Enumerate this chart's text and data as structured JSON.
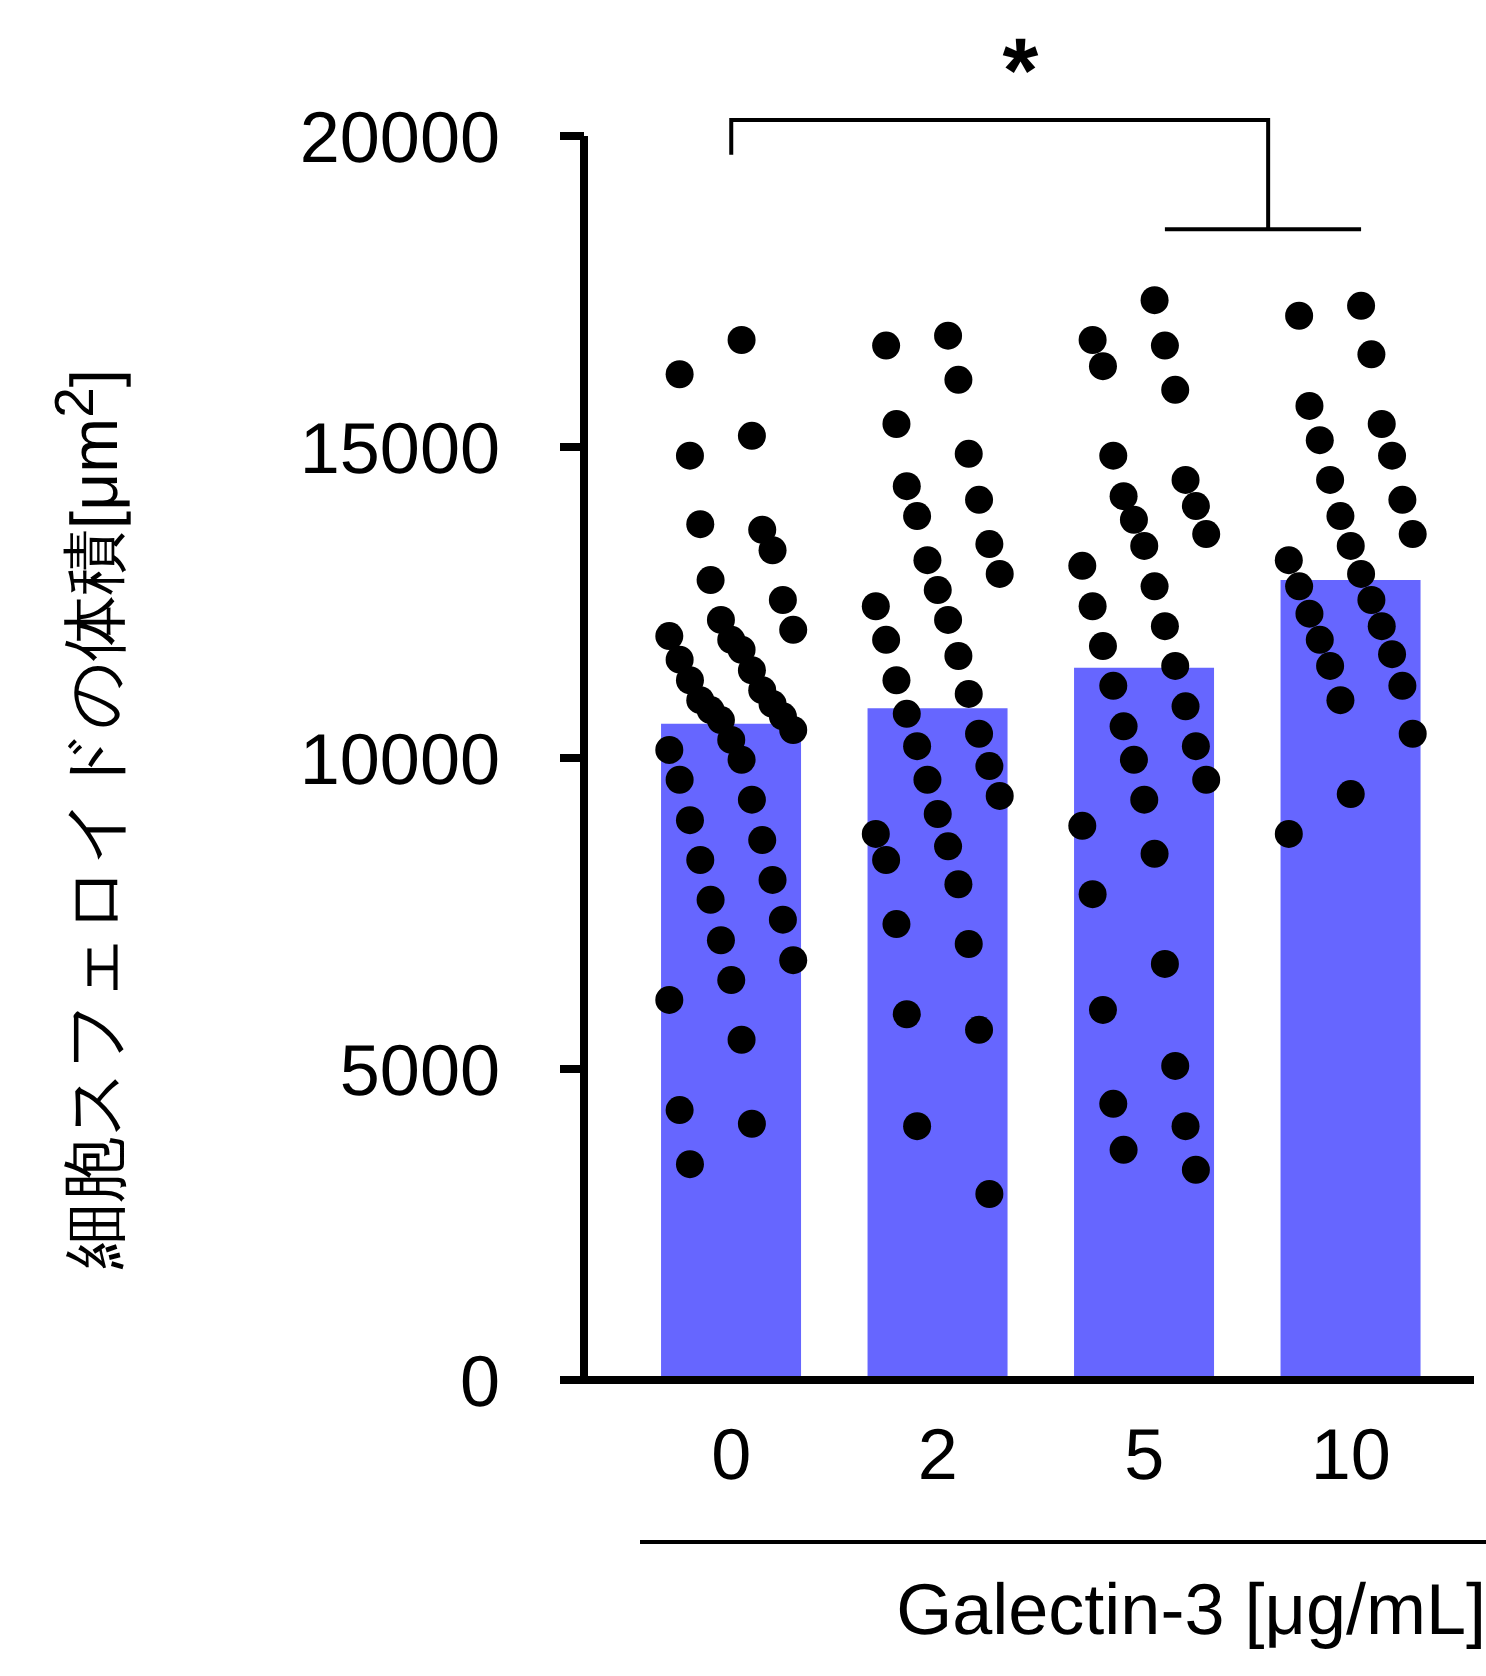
{
  "chart_data": {
    "type": "bar",
    "ylabel": "細胞スフェロイドの体積[μm$^{2}$]",
    "xlabel": "Galectin-3 [μg/mL]",
    "categories": [
      "0",
      "2",
      "5",
      "10"
    ],
    "ylim": [
      0,
      20000
    ],
    "yticks": [
      0,
      5000,
      10000,
      15000,
      20000
    ],
    "grid": false,
    "legend": false,
    "annotations": [
      "*"
    ],
    "series": [
      {
        "color": "#6666ff",
        "values": [
          10550,
          10800,
          11450,
          12860
        ]
      },
      {
        "type": "scatter",
        "color": "#000000",
        "marker": "circle",
        "x": [
          "0",
          "0",
          "0",
          "0",
          "0",
          "0",
          "0",
          "0",
          "0",
          "0",
          "0",
          "0",
          "0",
          "0",
          "0",
          "0",
          "0",
          "0",
          "0",
          "0",
          "0",
          "0",
          "0",
          "0",
          "0",
          "0",
          "0",
          "0",
          "0",
          "0",
          "0",
          "0",
          "0",
          "0",
          "0",
          "0",
          "0",
          "0",
          "0",
          "0",
          "0",
          "0",
          "0",
          "2",
          "2",
          "2",
          "2",
          "2",
          "2",
          "2",
          "2",
          "2",
          "2",
          "2",
          "2",
          "2",
          "2",
          "2",
          "2",
          "2",
          "2",
          "2",
          "2",
          "2",
          "2",
          "2",
          "2",
          "2",
          "2",
          "2",
          "2",
          "2",
          "2",
          "2",
          "2",
          "2",
          "2",
          "2",
          "5",
          "5",
          "5",
          "5",
          "5",
          "5",
          "5",
          "5",
          "5",
          "5",
          "5",
          "5",
          "5",
          "5",
          "5",
          "5",
          "5",
          "5",
          "5",
          "5",
          "5",
          "5",
          "5",
          "5",
          "5",
          "5",
          "5",
          "5",
          "5",
          "5",
          "5",
          "5",
          "5",
          "5",
          "5",
          "10",
          "10",
          "10",
          "10",
          "10",
          "10",
          "10",
          "10",
          "10",
          "10",
          "10",
          "10",
          "10",
          "10",
          "10",
          "10",
          "10",
          "10",
          "10",
          "10",
          "10",
          "10",
          "10",
          "10",
          "10",
          "10"
        ],
        "values": [
          16720,
          16170,
          15180,
          14860,
          13670,
          13760,
          13340,
          12860,
          12540,
          12220,
          12060,
          11900,
          11960,
          11740,
          11580,
          11410,
          11250,
          11090,
          10930,
          10870,
          10770,
          10670,
          10610,
          10450,
          10290,
          10130,
          9970,
          9650,
          9330,
          9000,
          8680,
          8360,
          8040,
          7720,
          7400,
          7070,
          6750,
          6430,
          6110,
          5470,
          4340,
          4120,
          3470,
          16790,
          16630,
          16080,
          15370,
          14890,
          14370,
          14150,
          13890,
          13440,
          13180,
          12960,
          12700,
          12440,
          12220,
          11900,
          11640,
          11250,
          11030,
          10710,
          10390,
          10190,
          9870,
          9650,
          9390,
          9100,
          8780,
          8580,
          8360,
          7970,
          7330,
          7010,
          5880,
          5630,
          4080,
          2990,
          17360,
          16720,
          16630,
          16300,
          15920,
          14860,
          14470,
          14210,
          14050,
          13830,
          13600,
          13410,
          13090,
          12760,
          12440,
          12120,
          11800,
          11480,
          11160,
          10830,
          10510,
          10190,
          9970,
          9650,
          9330,
          8910,
          8460,
          7810,
          6690,
          5950,
          5050,
          4440,
          4080,
          3700,
          3380,
          17270,
          17110,
          16490,
          15660,
          15370,
          15110,
          14860,
          14470,
          14150,
          13890,
          13600,
          13410,
          13180,
          12960,
          12760,
          12540,
          12320,
          12120,
          11900,
          11670,
          11480,
          11160,
          10930,
          10390,
          9420,
          8780
        ]
      }
    ]
  }
}
